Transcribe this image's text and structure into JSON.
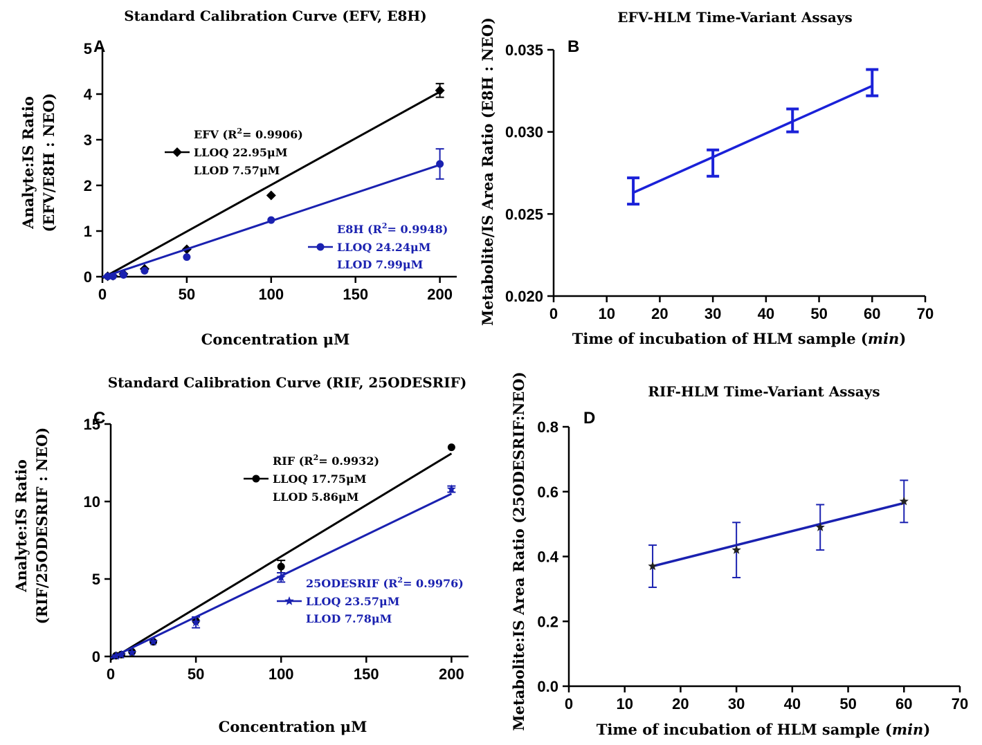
{
  "chart_data": [
    {
      "type": "scatter",
      "panel": "A",
      "title": "Standard Calibration Curve  (EFV, E8H)",
      "xlabel": "Concentration μM",
      "ylabel_line1": "Analyte:IS Ratio",
      "ylabel_line2": "(EFV/E8H : NEO)",
      "xlim": [
        0,
        210
      ],
      "ylim": [
        0,
        5
      ],
      "xticks": [
        0,
        50,
        100,
        150,
        200
      ],
      "yticks": [
        0,
        1,
        2,
        3,
        4,
        5
      ],
      "series": [
        {
          "name": "EFV",
          "color": "#000000",
          "marker": "diamond",
          "x": [
            3.125,
            6.25,
            12.5,
            25,
            50,
            100,
            200
          ],
          "y": [
            0.01,
            0.02,
            0.06,
            0.17,
            0.6,
            1.78,
            4.08
          ],
          "err": [
            0,
            0,
            0,
            0,
            0,
            0,
            0.15
          ],
          "fit": [
            [
              0,
              -0.03
            ],
            [
              200,
              4.05
            ]
          ],
          "legend_lines": [
            "EFV (R",
            "= 0.9906)",
            "LLOQ 22.95μM",
            "LLOD   7.57μM"
          ]
        },
        {
          "name": "E8H",
          "color": "#1a21b0",
          "marker": "circle",
          "x": [
            3.125,
            6.25,
            12.5,
            25,
            50,
            100,
            200
          ],
          "y": [
            0.005,
            0.01,
            0.04,
            0.13,
            0.43,
            1.24,
            2.47
          ],
          "err": [
            0,
            0,
            0,
            0,
            0,
            0,
            0.33
          ],
          "fit": [
            [
              0,
              -0.01
            ],
            [
              200,
              2.45
            ]
          ],
          "legend_lines": [
            "E8H (R",
            "= 0.9948)",
            "LLOQ 24.24μM",
            "LLOD   7.99μM"
          ]
        }
      ]
    },
    {
      "type": "line",
      "panel": "B",
      "title": "EFV-HLM Time-Variant Assays",
      "xlabel_prefix": "Time of incubation of HLM sample (",
      "xlabel_italic": "min",
      "xlabel_suffix": ")",
      "ylabel": "Metabolite/IS Area Ratio  (E8H : NEO)",
      "xlim": [
        0,
        70
      ],
      "ylim": [
        0.02,
        0.035
      ],
      "xticks": [
        0,
        10,
        20,
        30,
        40,
        50,
        60,
        70
      ],
      "yticks": [
        "0.020",
        "0.025",
        "0.030",
        "0.035"
      ],
      "series": [
        {
          "name": "E8H",
          "color": "#1a21d8",
          "x": [
            15,
            30,
            45,
            60
          ],
          "y": [
            0.0264,
            0.0281,
            0.0307,
            0.033
          ],
          "err": [
            0.0008,
            0.0008,
            0.0007,
            0.0008
          ],
          "fit": [
            [
              15,
              0.0263
            ],
            [
              60,
              0.0328
            ]
          ]
        }
      ]
    },
    {
      "type": "scatter",
      "panel": "C",
      "title": "Standard Calibration Curve (RIF, 25ODESRIF)",
      "xlabel": "Concentration μM",
      "ylabel_line1": "Analyte:IS Ratio",
      "ylabel_line2": "(RIF/25ODESRIF : NEO)",
      "xlim": [
        0,
        210
      ],
      "ylim": [
        0,
        15
      ],
      "xticks": [
        0,
        50,
        100,
        150,
        200
      ],
      "yticks": [
        0,
        5,
        10,
        15
      ],
      "series": [
        {
          "name": "RIF",
          "color": "#000000",
          "marker": "circle",
          "x": [
            3.125,
            6.25,
            12.5,
            25,
            50,
            100,
            200
          ],
          "y": [
            0.05,
            0.12,
            0.3,
            0.95,
            2.3,
            5.8,
            13.5
          ],
          "err": [
            0,
            0,
            0,
            0,
            0,
            0.4,
            0
          ],
          "fit": [
            [
              0,
              -0.2
            ],
            [
              200,
              13.1
            ]
          ],
          "legend_lines": [
            "RIF (R",
            "= 0.9932)",
            "LLOQ 17.75μM",
            "LLOD   5.86μM"
          ]
        },
        {
          "name": "25ODESRIF",
          "color": "#1a21b0",
          "marker": "star",
          "x": [
            3.125,
            6.25,
            12.5,
            25,
            50,
            100,
            200
          ],
          "y": [
            0.03,
            0.1,
            0.25,
            0.95,
            2.2,
            5.1,
            10.8
          ],
          "err": [
            0,
            0,
            0,
            0,
            0.35,
            0.3,
            0.2
          ],
          "fit": [
            [
              0,
              -0.1
            ],
            [
              200,
              10.5
            ]
          ],
          "legend_lines": [
            "25ODESRIF (R",
            "= 0.9976)",
            "LLOQ 23.57μM",
            "LLOD   7.78μM"
          ]
        }
      ]
    },
    {
      "type": "line",
      "panel": "D",
      "title": "RIF-HLM Time-Variant Assays",
      "xlabel_prefix": "Time of incubation of HLM sample (",
      "xlabel_italic": "min",
      "xlabel_suffix": ")",
      "ylabel": "Metabolite:IS Area Ratio  (25ODESRIF:NEO)",
      "xlim": [
        0,
        70
      ],
      "ylim": [
        0,
        0.8
      ],
      "xticks": [
        0,
        10,
        20,
        30,
        40,
        50,
        60,
        70
      ],
      "yticks": [
        "0.0",
        "0.2",
        "0.4",
        "0.6",
        "0.8"
      ],
      "series": [
        {
          "name": "25ODESRIF",
          "color": "#1a21b0",
          "x": [
            15,
            30,
            45,
            60
          ],
          "y": [
            0.37,
            0.42,
            0.49,
            0.57
          ],
          "err": [
            0.065,
            0.085,
            0.07,
            0.065
          ],
          "fit": [
            [
              15,
              0.37
            ],
            [
              30,
              0.435
            ],
            [
              45,
              0.5
            ],
            [
              60,
              0.565
            ]
          ]
        }
      ]
    }
  ],
  "superscript": "2"
}
